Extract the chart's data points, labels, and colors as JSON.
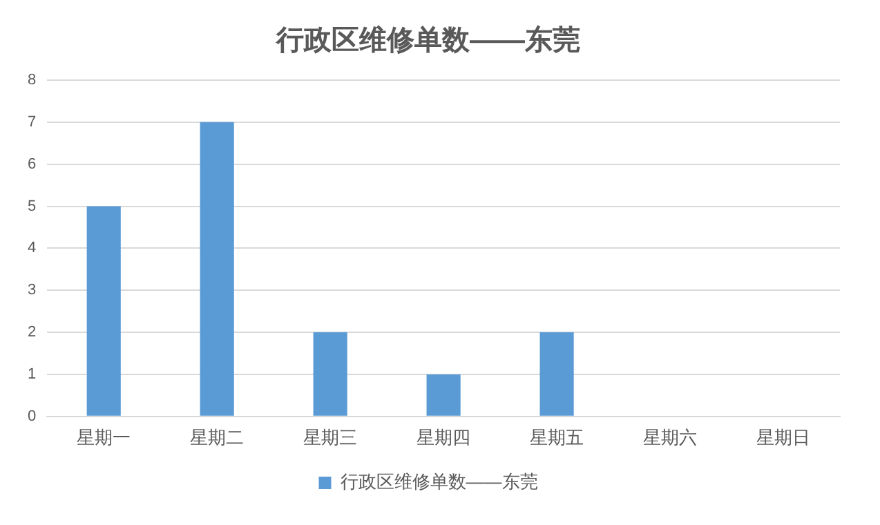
{
  "chart_data": {
    "type": "bar",
    "title": "行政区维修单数——东莞",
    "categories": [
      "星期一",
      "星期二",
      "星期三",
      "星期四",
      "星期五",
      "星期六",
      "星期日"
    ],
    "series": [
      {
        "name": "行政区维修单数——东莞",
        "color": "#5b9bd5",
        "values": [
          5,
          7,
          2,
          1,
          2,
          0,
          0
        ]
      }
    ],
    "ylim": [
      0,
      8
    ],
    "yticks": [
      0,
      1,
      2,
      3,
      4,
      5,
      6,
      7,
      8
    ],
    "grid": "y",
    "legend": "bottom"
  }
}
